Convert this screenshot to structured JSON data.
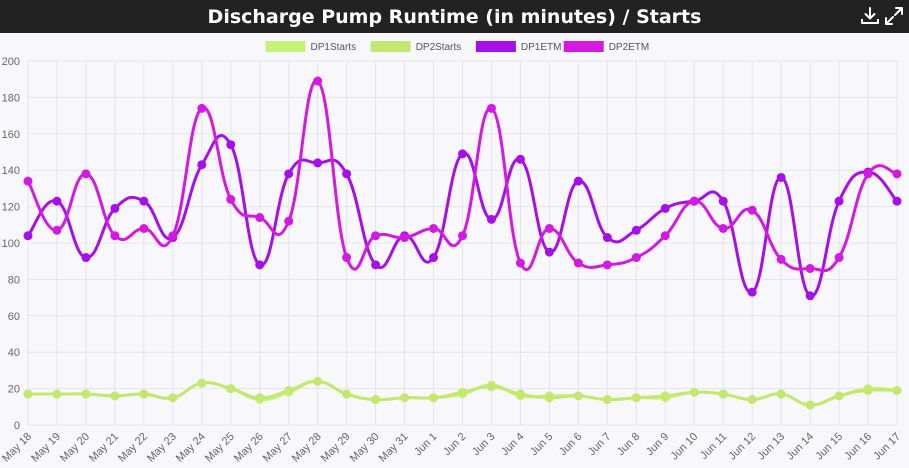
{
  "header": {
    "title": "Discharge Pump Runtime (in minutes) / Starts",
    "download_icon": "download-icon",
    "expand_icon": "expand-icon"
  },
  "colors": {
    "header_bg": "#222222",
    "plot_bg": "#f8f8fc",
    "grid": "#e3e3ea"
  },
  "chart_data": {
    "type": "line",
    "title": "Discharge Pump Runtime (in minutes) / Starts",
    "xlabel": "",
    "ylabel": "",
    "ylim": [
      0,
      200
    ],
    "yticks": [
      0,
      20,
      40,
      60,
      80,
      100,
      120,
      140,
      160,
      180,
      200
    ],
    "grid": true,
    "legend_position": "top",
    "curve": "smooth",
    "categories": [
      "May 18",
      "May 19",
      "May 20",
      "May 21",
      "May 22",
      "May 23",
      "May 24",
      "May 25",
      "May 26",
      "May 27",
      "May 28",
      "May 29",
      "May 30",
      "May 31",
      "Jun 1",
      "Jun 2",
      "Jun 3",
      "Jun 4",
      "Jun 5",
      "Jun 6",
      "Jun 7",
      "Jun 8",
      "Jun 9",
      "Jun 10",
      "Jun 11",
      "Jun 12",
      "Jun 13",
      "Jun 14",
      "Jun 15",
      "Jun 16",
      "Jun 17"
    ],
    "series": [
      {
        "name": "DP1Starts",
        "color": "#c5f27a",
        "values": [
          17,
          17,
          17,
          16,
          17,
          15,
          23,
          20,
          14,
          18,
          24,
          17,
          14,
          15,
          15,
          17,
          22,
          16,
          16,
          16,
          14,
          15,
          15,
          18,
          17,
          14,
          17,
          11,
          16,
          20,
          19
        ]
      },
      {
        "name": "DP2Starts",
        "color": "#c3e870",
        "values": [
          17,
          17,
          17,
          16,
          17,
          15,
          23,
          20,
          15,
          19,
          24,
          17,
          14,
          15,
          15,
          18,
          21,
          17,
          15,
          16,
          14,
          15,
          16,
          18,
          17,
          14,
          17,
          11,
          16,
          19,
          19
        ]
      },
      {
        "name": "DP1ETM",
        "color": "#a60fe8",
        "values": [
          104,
          123,
          92,
          119,
          123,
          103,
          143,
          154,
          88,
          138,
          144,
          138,
          88,
          104,
          92,
          149,
          113,
          146,
          95,
          134,
          103,
          107,
          119,
          123,
          123,
          73,
          136,
          71,
          123,
          139,
          123
        ]
      },
      {
        "name": "DP2ETM",
        "color": "#d31ae0",
        "values": [
          134,
          107,
          138,
          104,
          108,
          104,
          174,
          124,
          114,
          112,
          189,
          92,
          104,
          103,
          108,
          104,
          174,
          89,
          108,
          89,
          88,
          92,
          104,
          123,
          108,
          118,
          91,
          86,
          92,
          138,
          138
        ]
      }
    ]
  }
}
